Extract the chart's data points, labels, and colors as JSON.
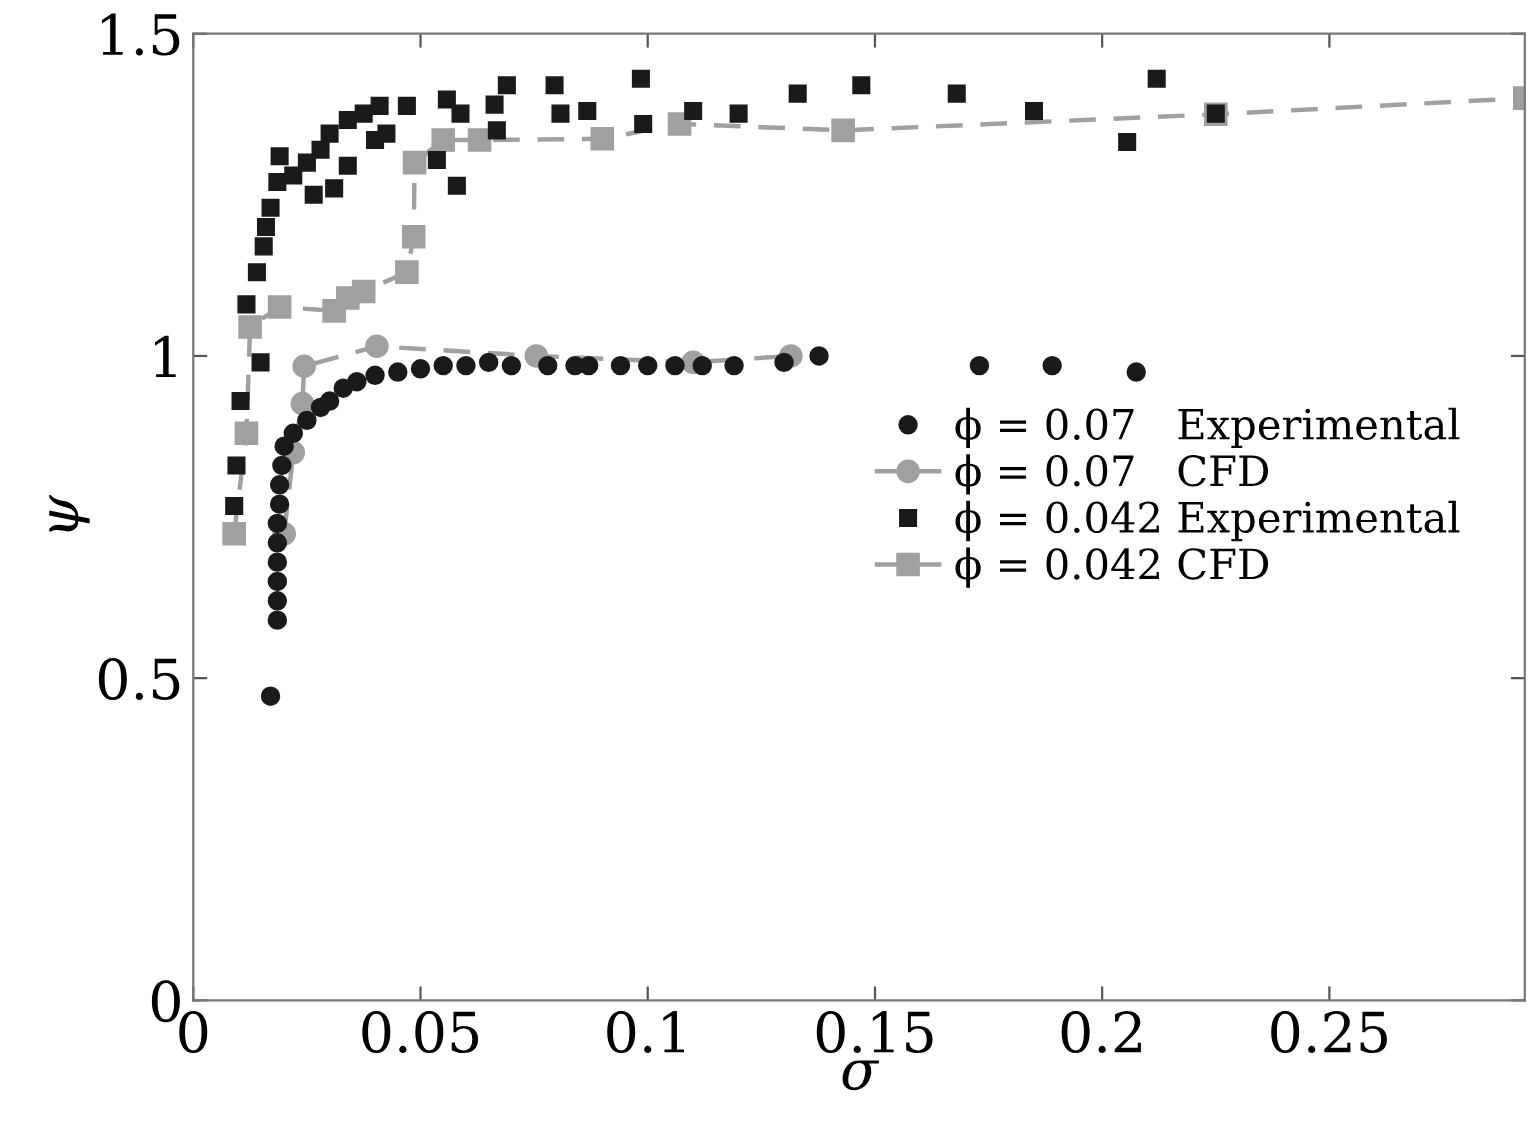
{
  "chart_data": {
    "type": "scatter",
    "xlabel": "σ",
    "ylabel": "ψ",
    "xlim": [
      0,
      0.293
    ],
    "ylim": [
      0,
      1.5
    ],
    "xticks": [
      0,
      0.05,
      0.1,
      0.15,
      0.2,
      0.25
    ],
    "yticks": [
      0,
      0.5,
      1,
      1.5
    ],
    "grid": false,
    "legend": "center right",
    "series": [
      {
        "name": "ϕ = 0.07   Experimental",
        "marker": "circle",
        "color": "#1a1a1a",
        "x": [
          0.017,
          0.0185,
          0.0185,
          0.0185,
          0.0185,
          0.0185,
          0.0185,
          0.019,
          0.019,
          0.0195,
          0.02,
          0.022,
          0.025,
          0.028,
          0.03,
          0.033,
          0.036,
          0.04,
          0.045,
          0.05,
          0.055,
          0.06,
          0.065,
          0.07,
          0.078,
          0.084,
          0.087,
          0.094,
          0.1,
          0.106,
          0.112,
          0.119,
          0.13,
          0.1377,
          0.173,
          0.189,
          0.2075
        ],
        "values": [
          0.472,
          0.59,
          0.62,
          0.65,
          0.68,
          0.71,
          0.74,
          0.77,
          0.8,
          0.83,
          0.86,
          0.88,
          0.9,
          0.92,
          0.93,
          0.95,
          0.96,
          0.97,
          0.975,
          0.98,
          0.985,
          0.985,
          0.99,
          0.985,
          0.985,
          0.985,
          0.985,
          0.985,
          0.985,
          0.985,
          0.985,
          0.985,
          0.99,
          1.0,
          0.985,
          0.985,
          0.975
        ]
      },
      {
        "name": "ϕ = 0.07   CFD",
        "type": "line",
        "marker": "circle",
        "line_style": "dashed",
        "color": "#a0a0a0",
        "x": [
          0.02,
          0.022,
          0.024,
          0.0244,
          0.0404,
          0.0755,
          0.11,
          0.1315
        ],
        "values": [
          0.724,
          0.85,
          0.926,
          0.984,
          1.015,
          1.0,
          0.99,
          1.0
        ]
      },
      {
        "name": "ϕ = 0.042 Experimental",
        "marker": "square",
        "color": "#1a1a1a",
        "x": [
          0.009,
          0.0095,
          0.0104,
          0.0148,
          0.0117,
          0.014,
          0.0155,
          0.016,
          0.017,
          0.0185,
          0.019,
          0.022,
          0.025,
          0.028,
          0.0265,
          0.031,
          0.03,
          0.034,
          0.0375,
          0.041,
          0.034,
          0.04,
          0.0425,
          0.047,
          0.0536,
          0.058,
          0.0558,
          0.0588,
          0.0663,
          0.069,
          0.0668,
          0.0795,
          0.0808,
          0.0867,
          0.0985,
          0.099,
          0.11,
          0.12,
          0.133,
          0.147,
          0.168,
          0.185,
          0.2055,
          0.212,
          0.225
        ],
        "values": [
          0.767,
          0.83,
          0.93,
          0.99,
          1.08,
          1.13,
          1.17,
          1.2,
          1.23,
          1.27,
          1.31,
          1.28,
          1.3,
          1.32,
          1.25,
          1.26,
          1.345,
          1.366,
          1.376,
          1.388,
          1.295,
          1.335,
          1.345,
          1.388,
          1.304,
          1.264,
          1.398,
          1.376,
          1.39,
          1.42,
          1.35,
          1.42,
          1.376,
          1.38,
          1.43,
          1.36,
          1.38,
          1.376,
          1.407,
          1.42,
          1.407,
          1.38,
          1.332,
          1.43,
          1.376
        ]
      },
      {
        "name": "ϕ = 0.042 CFD",
        "type": "line",
        "marker": "square",
        "line_style": "dashed",
        "color": "#a0a0a0",
        "x": [
          0.009,
          0.0117,
          0.0125,
          0.019,
          0.031,
          0.034,
          0.0375,
          0.047,
          0.0485,
          0.0487,
          0.055,
          0.063,
          0.09,
          0.107,
          0.143,
          0.225,
          0.293
        ],
        "values": [
          0.724,
          0.88,
          1.045,
          1.076,
          1.07,
          1.09,
          1.1,
          1.13,
          1.185,
          1.3,
          1.335,
          1.335,
          1.337,
          1.36,
          1.35,
          1.375,
          1.4
        ]
      }
    ]
  }
}
